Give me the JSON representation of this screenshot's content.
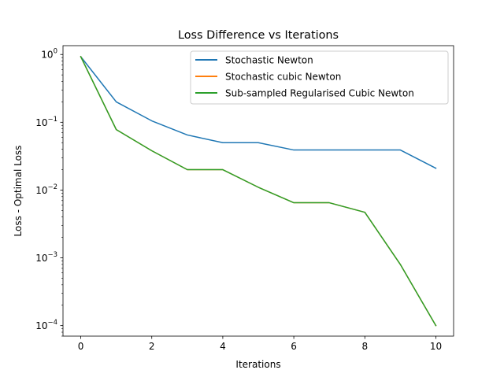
{
  "chart_data": {
    "type": "line",
    "title": "Loss Difference vs Iterations",
    "xlabel": "Iterations",
    "ylabel": "Loss - Optimal Loss",
    "xlim": [
      -0.5,
      10.5
    ],
    "ylim": [
      7e-05,
      1.35
    ],
    "yscale": "log",
    "x": [
      0,
      1,
      2,
      3,
      4,
      5,
      6,
      7,
      8,
      9,
      10
    ],
    "x_ticks": [
      0,
      2,
      4,
      6,
      8,
      10
    ],
    "x_tick_labels": [
      "0",
      "2",
      "4",
      "6",
      "8",
      "10"
    ],
    "y_ticks": [
      1,
      0.1,
      0.01,
      0.001,
      0.0001
    ],
    "y_tick_labels": [
      {
        "base": "10",
        "exp": "0"
      },
      {
        "base": "10",
        "exp": "−1"
      },
      {
        "base": "10",
        "exp": "−2"
      },
      {
        "base": "10",
        "exp": "−3"
      },
      {
        "base": "10",
        "exp": "−4"
      }
    ],
    "grid": false,
    "legend_position": "top-right",
    "series": [
      {
        "name": "Stochastic Newton",
        "color": "#1f77b4",
        "values": [
          0.93,
          0.2,
          0.105,
          0.065,
          0.05,
          0.05,
          0.039,
          0.039,
          0.039,
          0.039,
          0.021
        ]
      },
      {
        "name": "Stochastic cubic Newton",
        "color": "#ff7f0e",
        "values": [
          0.93,
          0.078,
          0.038,
          0.02,
          0.02,
          0.011,
          0.0065,
          0.0065,
          0.0047,
          0.0008,
          0.0001
        ]
      },
      {
        "name": "Sub-sampled Regularised Cubic Newton",
        "color": "#2ca02c",
        "values": [
          0.93,
          0.078,
          0.038,
          0.02,
          0.02,
          0.011,
          0.0065,
          0.0065,
          0.0047,
          0.0008,
          0.0001
        ]
      }
    ]
  }
}
